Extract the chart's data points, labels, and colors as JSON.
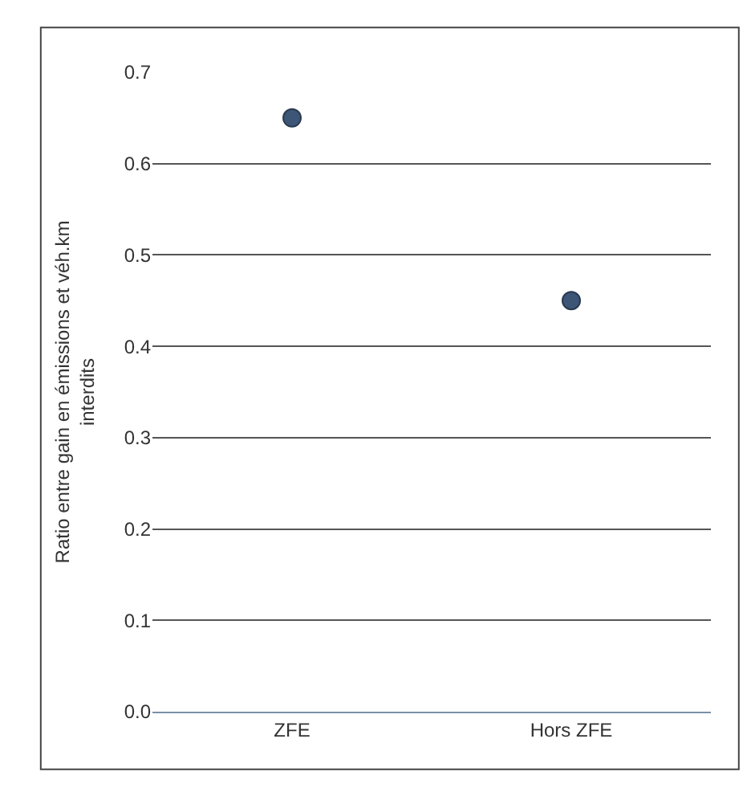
{
  "chart_data": {
    "type": "scatter",
    "categories": [
      "ZFE",
      "Hors ZFE"
    ],
    "series": [
      {
        "color": "#3d5677",
        "values": [
          0.65,
          0.45
        ]
      }
    ],
    "ylabel": "Ratio entre gain en émissions et véh.km\ninterdits",
    "ylim": [
      0,
      0.7
    ],
    "yticks": [
      {
        "value": 0,
        "label": "0.0"
      },
      0.1,
      0.2,
      0.3,
      0.4,
      0.5,
      0.6,
      0.7
    ],
    "grid": "y",
    "marker": "circle",
    "legend": false
  }
}
